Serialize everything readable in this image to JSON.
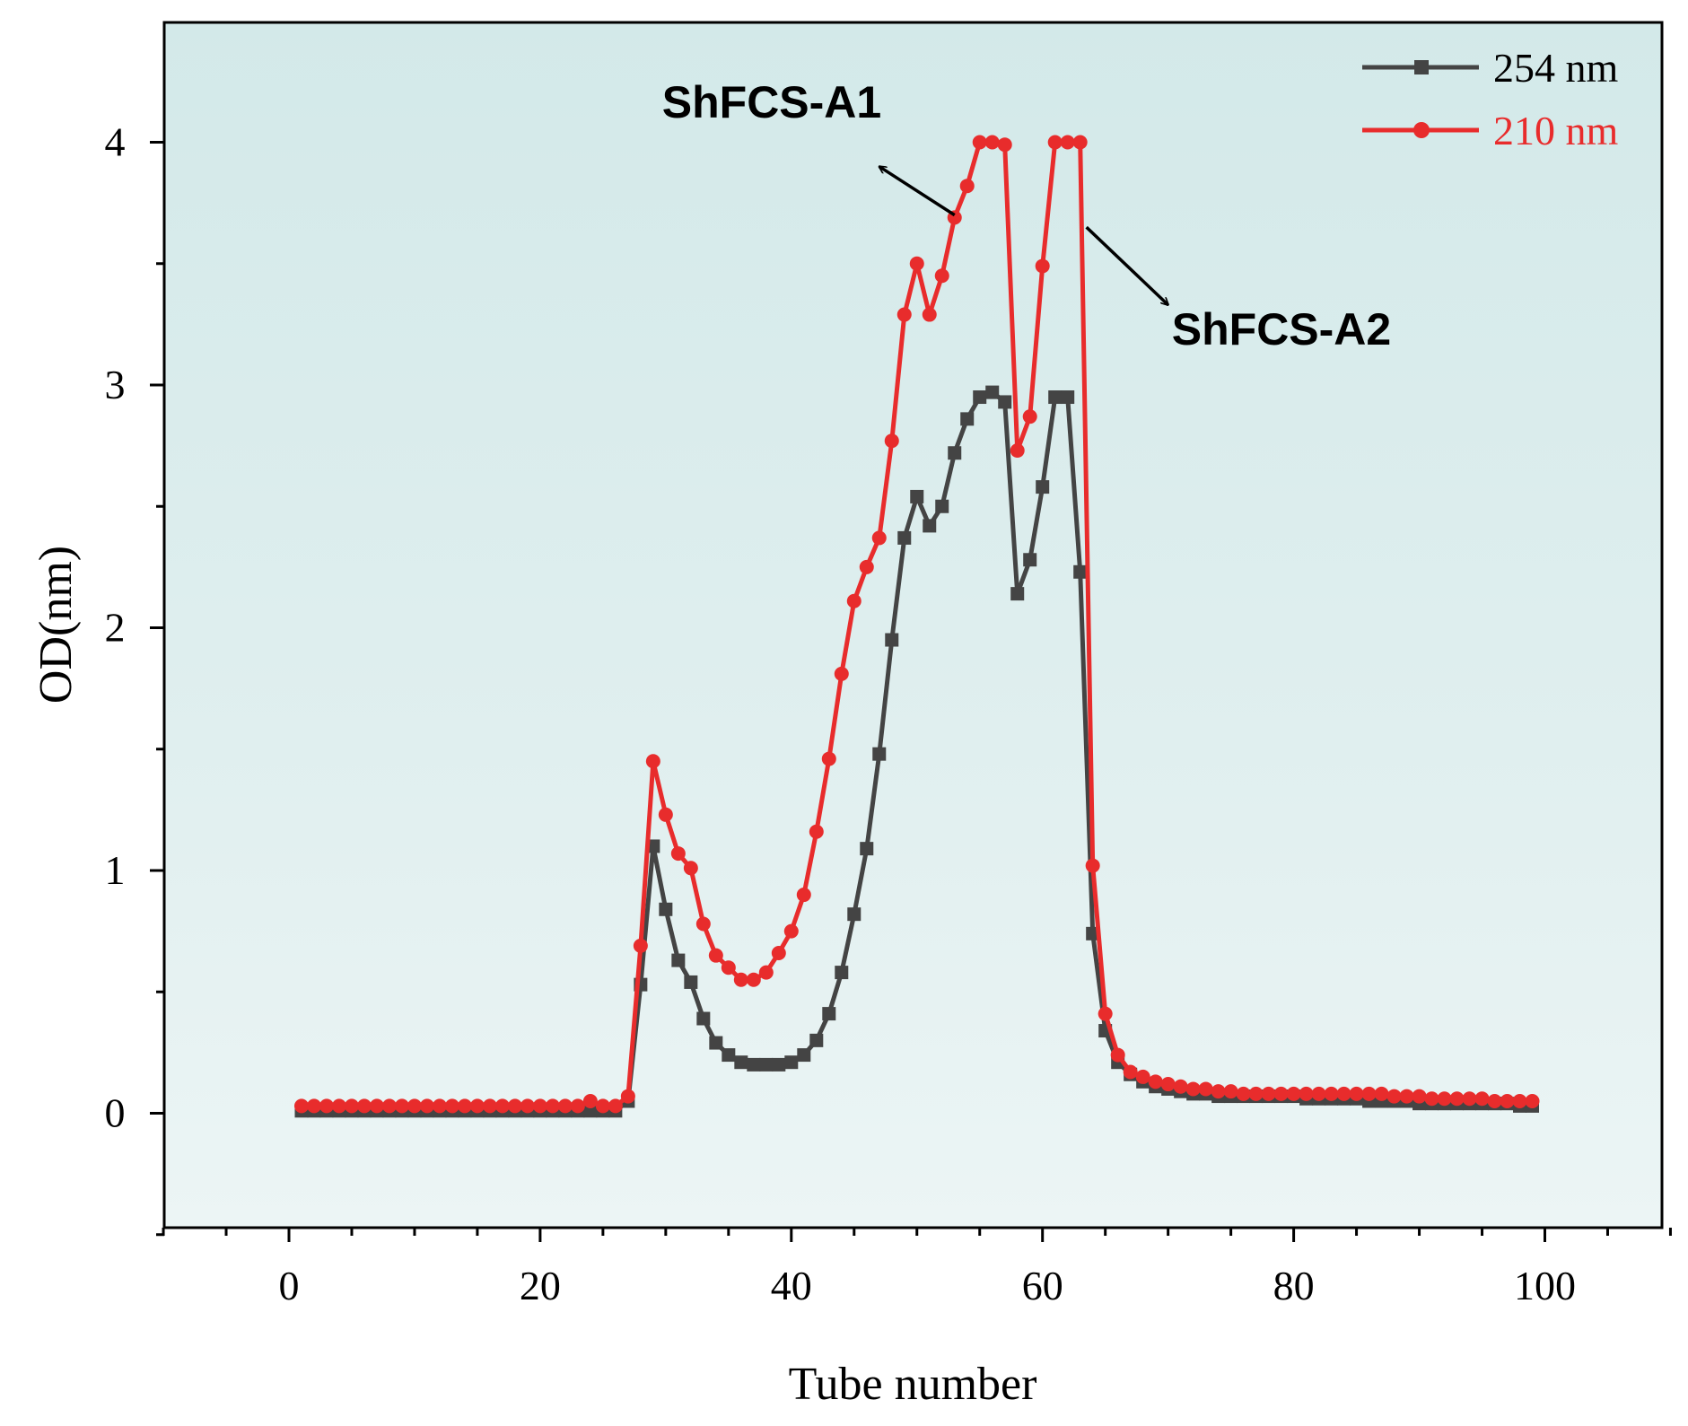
{
  "chart_data": {
    "type": "line",
    "xlabel": "Tube number",
    "ylabel": "OD(nm)",
    "xlim": [
      -10,
      110
    ],
    "ylim": [
      -0.5,
      4.4
    ],
    "xticks": [
      0,
      20,
      40,
      60,
      80,
      100
    ],
    "yticks": [
      0,
      1,
      2,
      3,
      4
    ],
    "grid": false,
    "legend_position": "top-right",
    "series": [
      {
        "name": "254 nm",
        "color": "#444444",
        "marker": "square",
        "x": [
          1,
          2,
          3,
          4,
          5,
          6,
          7,
          8,
          9,
          10,
          11,
          12,
          13,
          14,
          15,
          16,
          17,
          18,
          19,
          20,
          21,
          22,
          23,
          24,
          25,
          26,
          27,
          28,
          29,
          30,
          31,
          32,
          33,
          34,
          35,
          36,
          37,
          38,
          39,
          40,
          41,
          42,
          43,
          44,
          45,
          46,
          47,
          48,
          49,
          50,
          51,
          52,
          53,
          54,
          55,
          56,
          57,
          58,
          59,
          60,
          61,
          62,
          63,
          64,
          65,
          66,
          67,
          68,
          69,
          70,
          71,
          72,
          73,
          74,
          75,
          76,
          77,
          78,
          79,
          80,
          81,
          82,
          83,
          84,
          85,
          86,
          87,
          88,
          89,
          90,
          91,
          92,
          93,
          94,
          95,
          96,
          97,
          98,
          99
        ],
        "values": [
          0.01,
          0.01,
          0.01,
          0.01,
          0.01,
          0.01,
          0.01,
          0.01,
          0.01,
          0.01,
          0.01,
          0.01,
          0.01,
          0.01,
          0.01,
          0.01,
          0.01,
          0.01,
          0.01,
          0.01,
          0.01,
          0.01,
          0.01,
          0.01,
          0.01,
          0.01,
          0.05,
          0.53,
          1.1,
          0.84,
          0.63,
          0.54,
          0.39,
          0.29,
          0.24,
          0.21,
          0.2,
          0.2,
          0.2,
          0.21,
          0.24,
          0.3,
          0.41,
          0.58,
          0.82,
          1.09,
          1.48,
          1.95,
          2.37,
          2.54,
          2.42,
          2.5,
          2.72,
          2.86,
          2.95,
          2.97,
          2.93,
          2.14,
          2.28,
          2.58,
          2.95,
          2.95,
          2.23,
          0.74,
          0.34,
          0.21,
          0.16,
          0.13,
          0.11,
          0.1,
          0.09,
          0.08,
          0.08,
          0.07,
          0.07,
          0.07,
          0.07,
          0.07,
          0.07,
          0.07,
          0.06,
          0.06,
          0.06,
          0.06,
          0.06,
          0.05,
          0.05,
          0.05,
          0.05,
          0.04,
          0.04,
          0.04,
          0.04,
          0.04,
          0.04,
          0.04,
          0.04,
          0.03,
          0.03
        ]
      },
      {
        "name": "210 nm",
        "color": "#e82c2c",
        "marker": "circle",
        "x": [
          1,
          2,
          3,
          4,
          5,
          6,
          7,
          8,
          9,
          10,
          11,
          12,
          13,
          14,
          15,
          16,
          17,
          18,
          19,
          20,
          21,
          22,
          23,
          24,
          25,
          26,
          27,
          28,
          29,
          30,
          31,
          32,
          33,
          34,
          35,
          36,
          37,
          38,
          39,
          40,
          41,
          42,
          43,
          44,
          45,
          46,
          47,
          48,
          49,
          50,
          51,
          52,
          53,
          54,
          55,
          56,
          57,
          58,
          59,
          60,
          61,
          62,
          63,
          64,
          65,
          66,
          67,
          68,
          69,
          70,
          71,
          72,
          73,
          74,
          75,
          76,
          77,
          78,
          79,
          80,
          81,
          82,
          83,
          84,
          85,
          86,
          87,
          88,
          89,
          90,
          91,
          92,
          93,
          94,
          95,
          96,
          97,
          98,
          99
        ],
        "values": [
          0.03,
          0.03,
          0.03,
          0.03,
          0.03,
          0.03,
          0.03,
          0.03,
          0.03,
          0.03,
          0.03,
          0.03,
          0.03,
          0.03,
          0.03,
          0.03,
          0.03,
          0.03,
          0.03,
          0.03,
          0.03,
          0.03,
          0.03,
          0.05,
          0.03,
          0.03,
          0.07,
          0.69,
          1.45,
          1.23,
          1.07,
          1.01,
          0.78,
          0.65,
          0.6,
          0.55,
          0.55,
          0.58,
          0.66,
          0.75,
          0.9,
          1.16,
          1.46,
          1.81,
          2.11,
          2.25,
          2.37,
          2.77,
          3.29,
          3.5,
          3.29,
          3.45,
          3.69,
          3.82,
          4.0,
          4.0,
          3.99,
          2.73,
          2.87,
          3.49,
          4.0,
          4.0,
          4.0,
          1.02,
          0.41,
          0.24,
          0.17,
          0.15,
          0.13,
          0.12,
          0.11,
          0.1,
          0.1,
          0.09,
          0.09,
          0.08,
          0.08,
          0.08,
          0.08,
          0.08,
          0.08,
          0.08,
          0.08,
          0.08,
          0.08,
          0.08,
          0.08,
          0.07,
          0.07,
          0.07,
          0.06,
          0.06,
          0.06,
          0.06,
          0.06,
          0.05,
          0.05,
          0.05,
          0.05
        ]
      }
    ],
    "annotations": [
      {
        "text": "ShFCS-A1",
        "arrow_from": [
          53,
          3.7
        ],
        "arrow_to": [
          47,
          3.9
        ]
      },
      {
        "text": "ShFCS-A2",
        "arrow_from": [
          63.5,
          3.65
        ],
        "arrow_to": [
          70,
          3.33
        ]
      }
    ]
  }
}
